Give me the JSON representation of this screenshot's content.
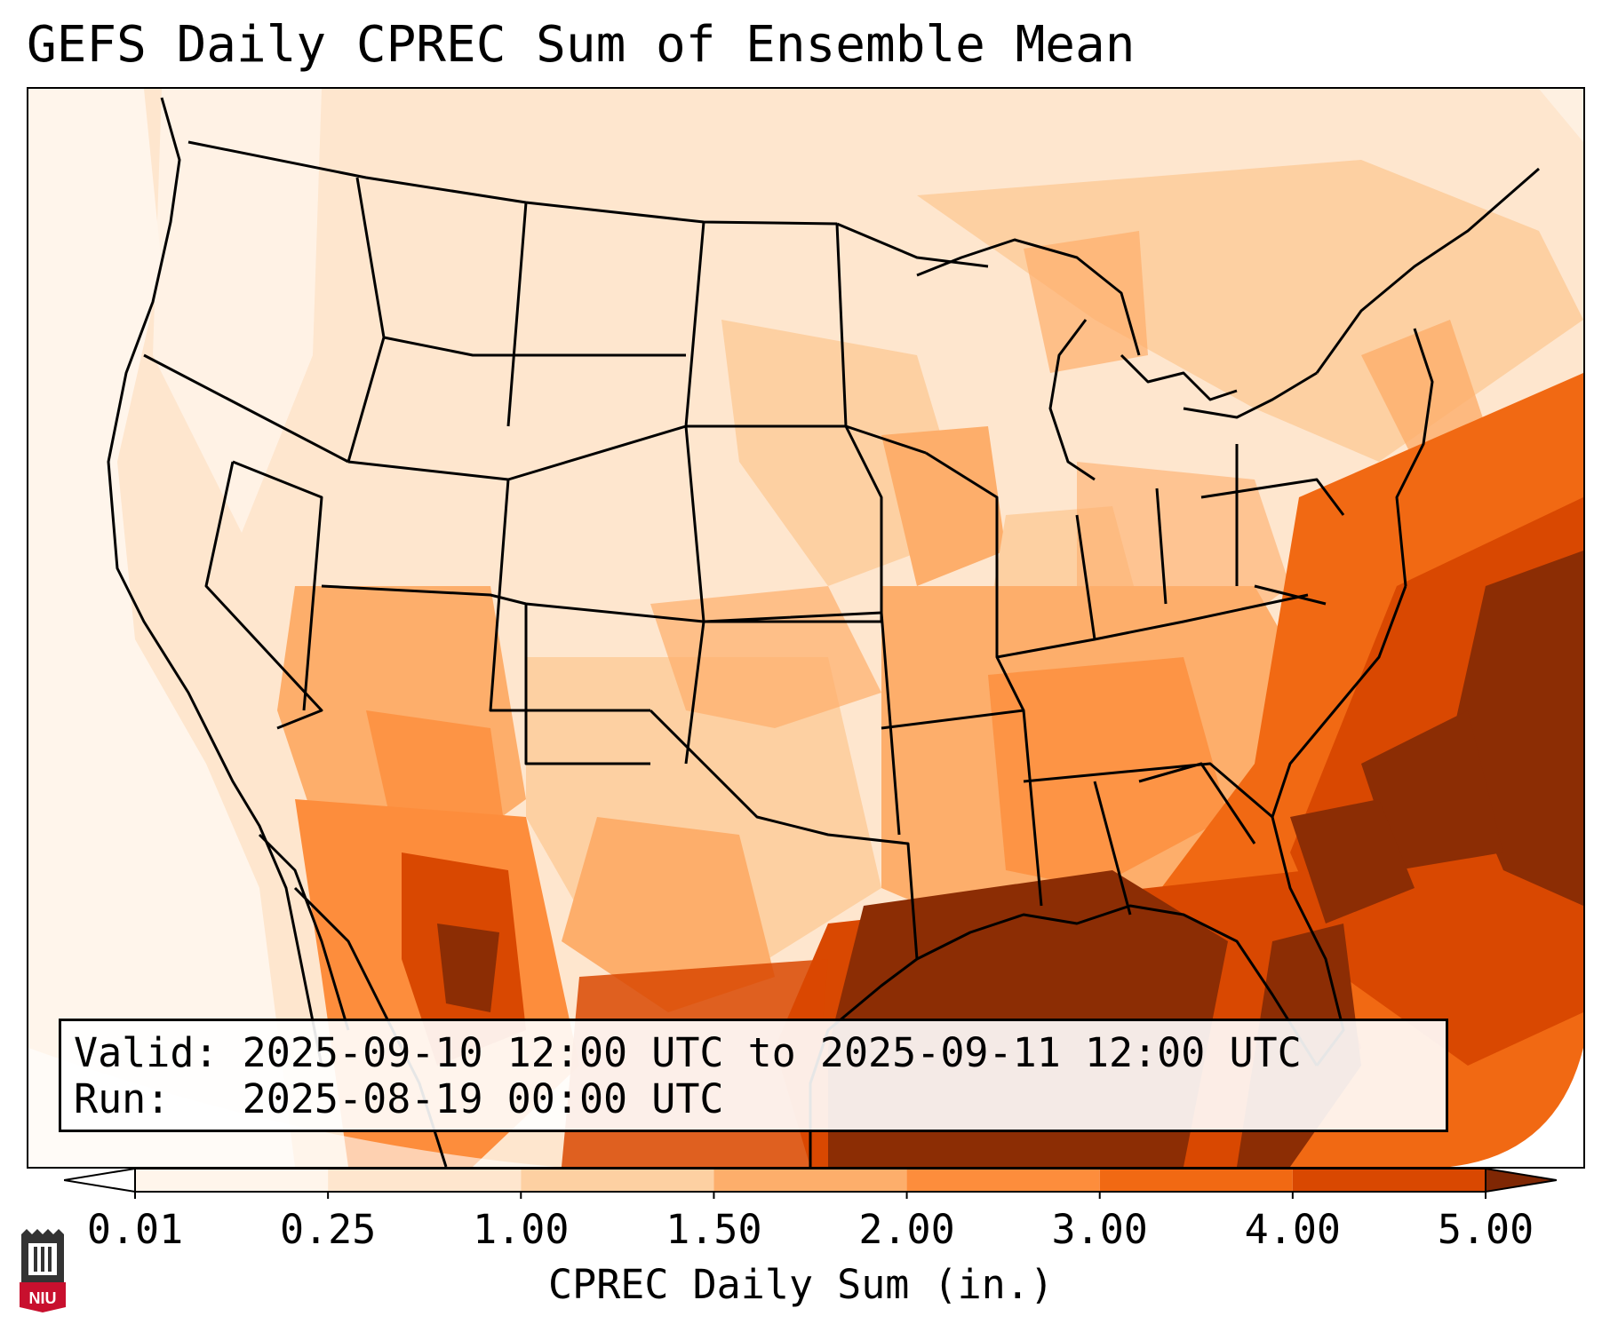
{
  "title": "GEFS Daily CPREC Sum of Ensemble Mean",
  "info": {
    "valid_label": "Valid:",
    "valid_value": "2025-09-10 12:00 UTC to 2025-09-11 12:00 UTC",
    "run_label": "Run:",
    "run_value": "2025-08-19 00:00 UTC"
  },
  "colorbar": {
    "label": "CPREC Daily Sum (in.)",
    "ticks": [
      "0.01",
      "0.25",
      "1.00",
      "1.50",
      "2.00",
      "3.00",
      "4.00",
      "5.00"
    ],
    "colors": [
      "#fff5eb",
      "#fee6ce",
      "#fdd0a2",
      "#fdae6b",
      "#fd8d3c",
      "#f16913",
      "#d94801",
      "#8c2d04"
    ],
    "under_color": "#ffffff",
    "over_color": "#7f2704"
  },
  "logo": {
    "text": "NIU",
    "accent": "#c8102e"
  }
}
